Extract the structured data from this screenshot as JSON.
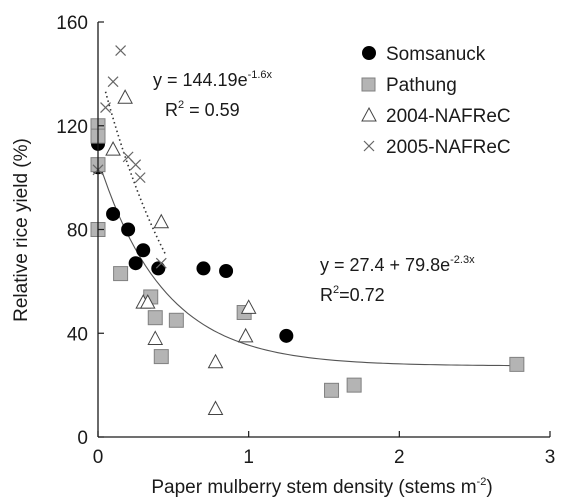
{
  "chart_data": {
    "type": "scatter",
    "xlabel": "Paper mulberry stem density (stems m",
    "xlabel_sup": "-2",
    "xlabel_end": ")",
    "ylabel": "Relative rice yield (%)",
    "xlim": [
      0,
      3
    ],
    "ylim": [
      0,
      160
    ],
    "x_ticks": [
      0,
      1,
      2,
      3
    ],
    "y_ticks": [
      0,
      40,
      80,
      120,
      160
    ],
    "grid": false,
    "legend_position": "top-right",
    "colors": {
      "axis": "#1a1a1a",
      "square_fill": "#b4b4b4",
      "square_stroke": "#808080",
      "curve": "#555555"
    },
    "series": [
      {
        "name": "Somsanuck",
        "marker": "filled-circle",
        "points": [
          [
            0.0,
            113
          ],
          [
            0.0,
            104
          ],
          [
            0.1,
            86
          ],
          [
            0.2,
            80
          ],
          [
            0.25,
            67
          ],
          [
            0.3,
            72
          ],
          [
            0.4,
            65
          ],
          [
            0.7,
            65
          ],
          [
            0.85,
            64
          ],
          [
            1.25,
            39
          ]
        ]
      },
      {
        "name": "Pathung",
        "marker": "gray-square",
        "points": [
          [
            0.0,
            120
          ],
          [
            0.0,
            116
          ],
          [
            0.0,
            105
          ],
          [
            0.0,
            80
          ],
          [
            0.15,
            63
          ],
          [
            0.35,
            54
          ],
          [
            0.38,
            46
          ],
          [
            0.42,
            31
          ],
          [
            0.52,
            45
          ],
          [
            0.97,
            48
          ],
          [
            1.55,
            18
          ],
          [
            1.7,
            20
          ],
          [
            2.78,
            28
          ]
        ]
      },
      {
        "name": "2004-NAFReC",
        "marker": "open-triangle",
        "points": [
          [
            0.1,
            111
          ],
          [
            0.18,
            131
          ],
          [
            0.3,
            52
          ],
          [
            0.33,
            52
          ],
          [
            0.38,
            38
          ],
          [
            0.42,
            83
          ],
          [
            0.78,
            29
          ],
          [
            0.78,
            11
          ],
          [
            0.98,
            39
          ],
          [
            1.0,
            50
          ]
        ]
      },
      {
        "name": "2005-NAFReC",
        "marker": "cross",
        "points": [
          [
            0.05,
            127
          ],
          [
            0.1,
            137
          ],
          [
            0.15,
            149
          ],
          [
            0.2,
            108
          ],
          [
            0.25,
            105
          ],
          [
            0.28,
            100
          ],
          [
            0.42,
            67
          ],
          [
            0.0,
            103
          ]
        ]
      }
    ],
    "fits": [
      {
        "equation_base": "y = 144.19e",
        "equation_exp": "-1.6x",
        "r2_base": "R",
        "r2_sup": "2",
        "r2_value": " = 0.59",
        "style": "dotted",
        "a": 0,
        "b": 144.19,
        "k": -1.6,
        "x_range": [
          0.05,
          0.45
        ]
      },
      {
        "equation_base": "y = 27.4 + 79.8e",
        "equation_exp": "-2.3x",
        "r2_base": "R",
        "r2_sup": "2",
        "r2_value": "=0.72",
        "style": "solid",
        "a": 27.4,
        "b": 79.8,
        "k": -2.3,
        "x_range": [
          0,
          2.8
        ]
      }
    ]
  }
}
